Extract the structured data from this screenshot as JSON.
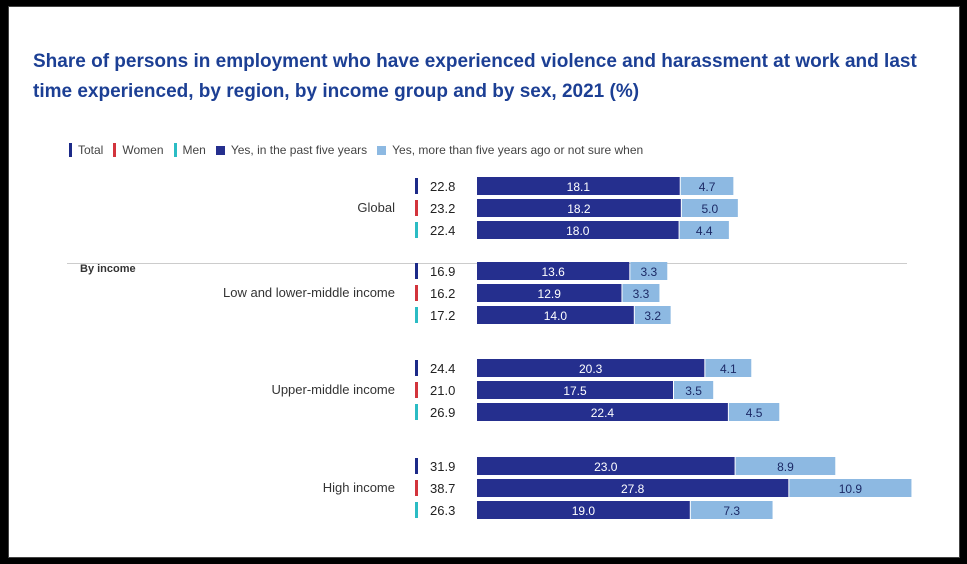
{
  "chart_data": {
    "type": "bar",
    "stacked": true,
    "orientation": "horizontal",
    "title": "Share of persons in employment who have experienced violence and harassment at work and last time experienced, by region, by income group and by sex, 2021 (%)",
    "legend": {
      "placement": "top-left",
      "entries": [
        {
          "label": "Total",
          "color": "#1c2a88",
          "marker": "tick"
        },
        {
          "label": "Women",
          "color": "#d2343c",
          "marker": "tick"
        },
        {
          "label": "Men",
          "color": "#2bbcc4",
          "marker": "tick"
        },
        {
          "label": "Yes, in the past five years",
          "color": "#252f8e",
          "marker": "square"
        },
        {
          "label": "Yes, more than five years ago or not sure when",
          "color": "#8db9e2",
          "marker": "square"
        }
      ]
    },
    "section_label": "By income",
    "groups": [
      {
        "name": "Global",
        "rows": [
          {
            "sex": "Total",
            "total": "22.8",
            "past5": 18.1,
            "older": 4.7
          },
          {
            "sex": "Women",
            "total": "23.2",
            "past5": 18.2,
            "older": 5.0
          },
          {
            "sex": "Men",
            "total": "22.4",
            "past5": 18.0,
            "older": 4.4
          }
        ]
      },
      {
        "name": "Low and lower-middle income",
        "rows": [
          {
            "sex": "Total",
            "total": "16.9",
            "past5": 13.6,
            "older": 3.3
          },
          {
            "sex": "Women",
            "total": "16.2",
            "past5": 12.9,
            "older": 3.3
          },
          {
            "sex": "Men",
            "total": "17.2",
            "past5": 14.0,
            "older": 3.2
          }
        ]
      },
      {
        "name": "Upper-middle income",
        "rows": [
          {
            "sex": "Total",
            "total": "24.4",
            "past5": 20.3,
            "older": 4.1
          },
          {
            "sex": "Women",
            "total": "21.0",
            "past5": 17.5,
            "older": 3.5
          },
          {
            "sex": "Men",
            "total": "26.9",
            "past5": 22.4,
            "older": 4.5
          }
        ]
      },
      {
        "name": "High income",
        "rows": [
          {
            "sex": "Total",
            "total": "31.9",
            "past5": 23.0,
            "older": 8.9
          },
          {
            "sex": "Women",
            "total": "38.7",
            "past5": 27.8,
            "older": 10.9
          },
          {
            "sex": "Men",
            "total": "26.3",
            "past5": 19.0,
            "older": 7.3
          }
        ]
      }
    ],
    "grid": false
  }
}
